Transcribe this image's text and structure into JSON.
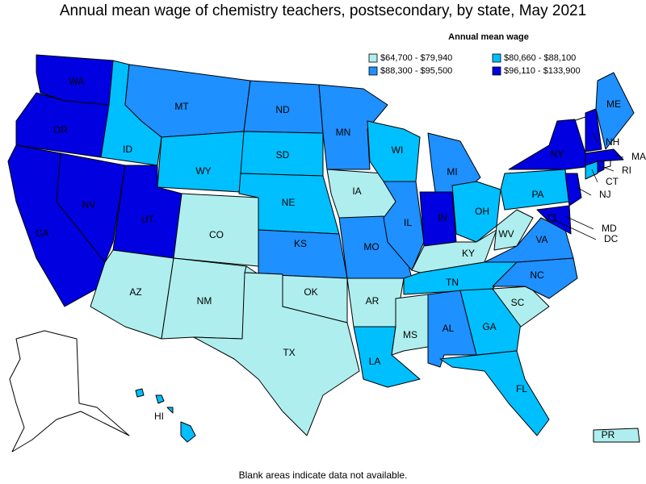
{
  "title": "Annual mean wage of chemistry teachers, postsecondary, by state, May 2021",
  "legend": {
    "title": "Annual mean wage",
    "items": [
      {
        "label": "$64,700 - $79,940",
        "color": "#afeeee"
      },
      {
        "label": "$80,660 - $88,100",
        "color": "#00bfff"
      },
      {
        "label": "$88,300 - $95,500",
        "color": "#1e90ff"
      },
      {
        "label": "$96,110 - $133,900",
        "color": "#0000e0"
      }
    ]
  },
  "states": [
    {
      "label": "WA",
      "class": 3
    },
    {
      "label": "OR",
      "class": 3
    },
    {
      "label": "CA",
      "class": 3
    },
    {
      "label": "NV",
      "class": 3
    },
    {
      "label": "ID",
      "class": 1
    },
    {
      "label": "MT",
      "class": 2
    },
    {
      "label": "WY",
      "class": 1
    },
    {
      "label": "UT",
      "class": 3
    },
    {
      "label": "CO",
      "class": 0
    },
    {
      "label": "AZ",
      "class": 0
    },
    {
      "label": "NM",
      "class": 0
    },
    {
      "label": "ND",
      "class": 2
    },
    {
      "label": "SD",
      "class": 1
    },
    {
      "label": "NE",
      "class": 1
    },
    {
      "label": "KS",
      "class": 2
    },
    {
      "label": "OK",
      "class": 0
    },
    {
      "label": "TX",
      "class": 0
    },
    {
      "label": "MN",
      "class": 2
    },
    {
      "label": "IA",
      "class": 0
    },
    {
      "label": "MO",
      "class": 2
    },
    {
      "label": "AR",
      "class": 0
    },
    {
      "label": "LA",
      "class": 1
    },
    {
      "label": "WI",
      "class": 1
    },
    {
      "label": "IL",
      "class": 2
    },
    {
      "label": "MI",
      "class": 2
    },
    {
      "label": "IN",
      "class": 3
    },
    {
      "label": "OH",
      "class": 1
    },
    {
      "label": "KY",
      "class": 0
    },
    {
      "label": "TN",
      "class": 1
    },
    {
      "label": "MS",
      "class": 0
    },
    {
      "label": "AL",
      "class": 2
    },
    {
      "label": "GA",
      "class": 1
    },
    {
      "label": "FL",
      "class": 1
    },
    {
      "label": "SC",
      "class": 0
    },
    {
      "label": "NC",
      "class": 2
    },
    {
      "label": "VA",
      "class": 2
    },
    {
      "label": "WV",
      "class": 0
    },
    {
      "label": "PA",
      "class": 1
    },
    {
      "label": "NY",
      "class": 3
    },
    {
      "label": "MD",
      "class": 3
    },
    {
      "label": "NJ",
      "class": 3
    },
    {
      "label": "CT",
      "class": 1
    },
    {
      "label": "RI",
      "class": 3
    },
    {
      "label": "MA",
      "class": 3
    },
    {
      "label": "NH",
      "class": 3
    },
    {
      "label": "ME",
      "class": 2
    },
    {
      "label": "HI",
      "class": 1
    },
    {
      "label": "PR",
      "class": 0
    },
    {
      "label": "DC",
      "class": 3
    }
  ],
  "note": "Blank areas indicate data not available."
}
